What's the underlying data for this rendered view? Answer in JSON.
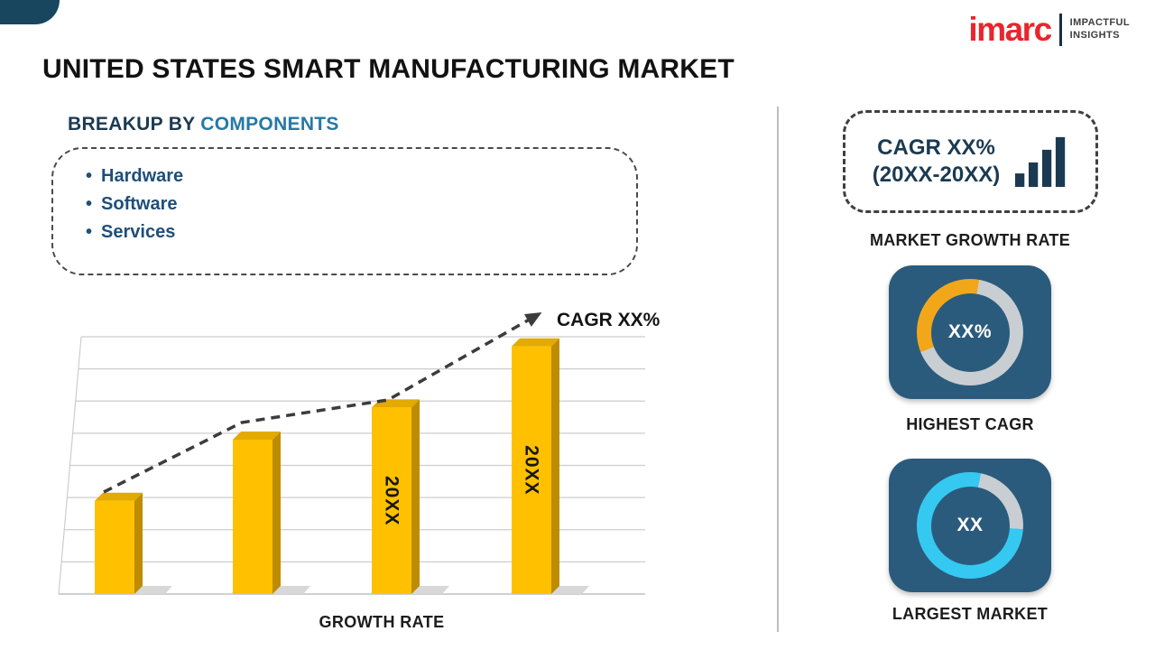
{
  "colors": {
    "brand-red": "#E8262D",
    "navy-text": "#1F4E79",
    "heading-dark": "#1B3A52",
    "heading-accent": "#2679A6",
    "card-bg": "#2B5B7C",
    "donut-track": "#C9CED3",
    "donut-orange": "#F2A71B",
    "donut-cyan": "#35C9F2",
    "corner-teal": "#17465E",
    "divider": "#BDBDBD",
    "trend": "#3C3C3C"
  },
  "header": {
    "title": "UNITED STATES SMART MANUFACTURING MARKET",
    "logo": {
      "brand": "imarc",
      "tagline_line1": "IMPACTFUL",
      "tagline_line2": "INSIGHTS"
    }
  },
  "breakup": {
    "heading_prefix": "BREAKUP BY ",
    "heading_highlight": "COMPONENTS",
    "items": [
      "Hardware",
      "Software",
      "Services"
    ]
  },
  "chart_data": {
    "type": "bar",
    "categories": [
      "",
      "",
      "20XX",
      "20XX"
    ],
    "values": [
      29,
      48,
      58,
      77
    ],
    "bar_labels": [
      "",
      "",
      "20XX",
      "20XX"
    ],
    "title": "",
    "xlabel": "GROWTH RATE",
    "ylabel": "",
    "ylim": [
      0,
      80
    ],
    "gridlines": 9,
    "annotation": "CAGR XX%",
    "trend_style": "dashed-arrow",
    "bar_front_color": "#FFC000",
    "bar_top_color": "#E3AA00",
    "bar_side_color": "#BE8C00",
    "legend": "none"
  },
  "sidebar": {
    "market_growth": {
      "cagr_line1": "CAGR XX%",
      "cagr_line2": "(20XX-20XX)",
      "label": "MARKET GROWTH RATE"
    },
    "highest_cagr": {
      "value": "XX%",
      "label": "HIGHEST CAGR"
    },
    "largest_market": {
      "value": "XX",
      "label": "LARGEST MARKET"
    }
  }
}
